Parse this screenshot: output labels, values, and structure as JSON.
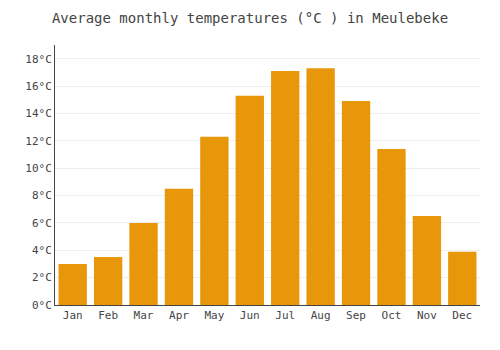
{
  "chart_data": {
    "type": "bar",
    "title": "Average monthly temperatures (°C ) in Meulebeke",
    "categories": [
      "Jan",
      "Feb",
      "Mar",
      "Apr",
      "May",
      "Jun",
      "Jul",
      "Aug",
      "Sep",
      "Oct",
      "Nov",
      "Dec"
    ],
    "values": [
      3.0,
      3.5,
      6.0,
      8.5,
      12.3,
      15.3,
      17.1,
      17.3,
      14.9,
      11.4,
      6.5,
      3.9
    ],
    "color": "#E8960A",
    "ylim": [
      0,
      19
    ],
    "yticks": [
      {
        "value": 0,
        "label": "0°C"
      },
      {
        "value": 2,
        "label": "2°C"
      },
      {
        "value": 4,
        "label": "4°C"
      },
      {
        "value": 6,
        "label": "6°C"
      },
      {
        "value": 8,
        "label": "8°C"
      },
      {
        "value": 10,
        "label": "10°C"
      },
      {
        "value": 12,
        "label": "12°C"
      },
      {
        "value": 14,
        "label": "14°C"
      },
      {
        "value": 16,
        "label": "16°C"
      },
      {
        "value": 18,
        "label": "18°C"
      }
    ],
    "grid": true
  }
}
